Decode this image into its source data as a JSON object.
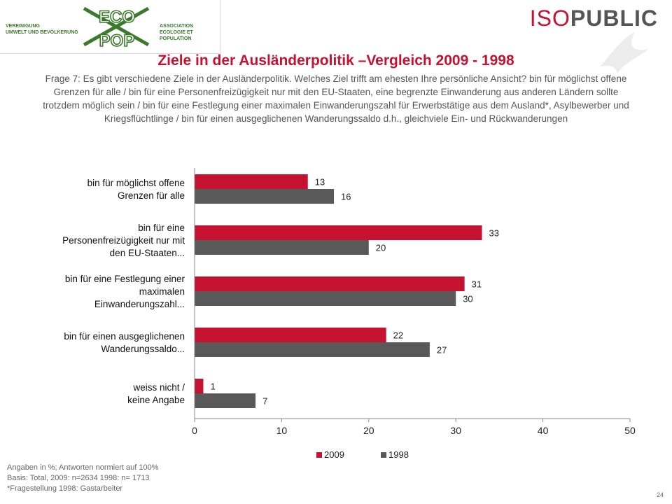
{
  "header": {
    "logo_left_lines": [
      "VEREINIGUNG",
      "UMWELT UND BEVÖLKERUNG"
    ],
    "logo_right_lines": [
      "ASSOCIATION",
      "ECOLOGIE ET POPULATION"
    ],
    "logo_mark_top": "ECO",
    "logo_mark_bottom": "POP",
    "brand_iso": "ISO",
    "brand_public": "PUBLIC",
    "colors": {
      "green": "#3a7a2a",
      "red": "#c41230"
    }
  },
  "slide": {
    "title": "Ziele in der Ausländerpolitik –Vergleich 2009 - 1998",
    "question": "Frage 7: Es gibt verschiedene Ziele in der Ausländerpolitik. Welches Ziel trifft am ehesten Ihre persönliche Ansicht? bin für möglichst offene Grenzen für alle / bin für eine Personenfreizügigkeit nur mit den EU-Staaten, eine begrenzte Einwanderung aus anderen Ländern sollte trotzdem möglich sein / bin für eine Festlegung einer maximalen Einwanderungszahl für Erwerbstätige aus dem Ausland*, Asylbewerber und Kriegsflüchtlinge / bin für einen ausgeglichenen Wanderungssaldo d.h., gleichviele Ein- und Rückwanderungen",
    "footnotes": [
      "Angaben in %; Antworten normiert auf 100%",
      "Basis: Total, 2009: n=2634  1998: n= 1713",
      "*Fragestellung 1998: Gastarbeiter"
    ],
    "page_number": "24"
  },
  "chart_data": {
    "type": "bar",
    "orientation": "horizontal",
    "categories": [
      [
        "bin für möglichst offene",
        "Grenzen für alle"
      ],
      [
        "bin für eine",
        "Personenfreizügigkeit nur mit",
        "den EU-Staaten..."
      ],
      [
        "bin für eine Festlegung einer",
        "maximalen",
        "Einwanderungszahl..."
      ],
      [
        "bin für einen ausgeglichenen",
        "Wanderungssaldo..."
      ],
      [
        "weiss nicht /",
        "keine Angabe"
      ]
    ],
    "series": [
      {
        "name": "2009",
        "values": [
          13,
          33,
          31,
          22,
          1
        ],
        "color": "#c41230"
      },
      {
        "name": "1998",
        "values": [
          16,
          20,
          30,
          27,
          7
        ],
        "color": "#595959"
      }
    ],
    "xlim": [
      0,
      50
    ],
    "xticks": [
      0,
      10,
      20,
      30,
      40,
      50
    ],
    "grid": false,
    "legend_position": "bottom"
  }
}
